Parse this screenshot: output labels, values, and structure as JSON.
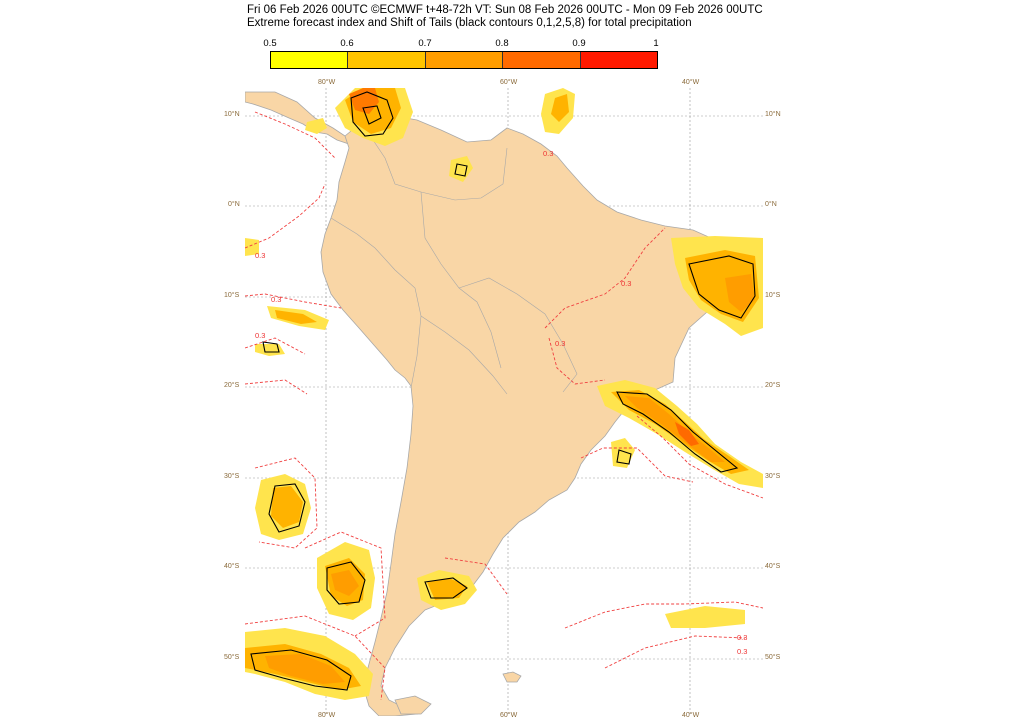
{
  "header": {
    "line1": "Fri 06 Feb 2026 00UTC ©ECMWF t+48-72h  VT: Sun 08 Feb 2026 00UTC - Mon 09 Feb 2026 00UTC",
    "line2": "Extreme forecast index and Shift of Tails (black contours 0,1,2,5,8) for total precipitation"
  },
  "legend": {
    "labels": [
      "0.5",
      "0.6",
      "0.7",
      "0.8",
      "0.9",
      "1"
    ],
    "colors": [
      "#ffff00",
      "#ffc400",
      "#ff9d00",
      "#ff6a00",
      "#ff1a00"
    ]
  },
  "map": {
    "land_color": "#f9d6a6",
    "ocean_color": "#ffffff",
    "contour_label": "0.3",
    "longitude_labels": [
      "80°W",
      "60°W",
      "40°W"
    ],
    "latitude_labels": [
      "10°N",
      "0°N",
      "10°S",
      "20°S",
      "30°S",
      "40°S",
      "50°S"
    ]
  }
}
